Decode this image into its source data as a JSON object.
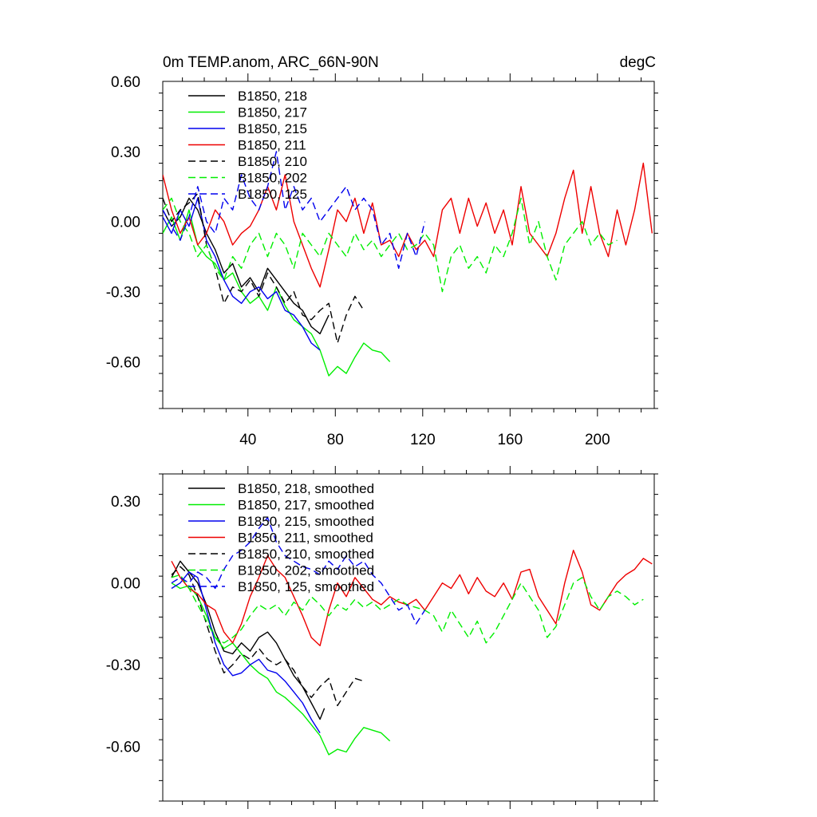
{
  "chart_data": [
    {
      "type": "line",
      "title": "0m TEMP.anom, ARC_66N-90N",
      "units": "degC",
      "xlim": [
        1,
        226
      ],
      "ylim": [
        -0.8,
        0.6
      ],
      "xticks": [
        40,
        80,
        120,
        160,
        200
      ],
      "xtick_labels": [
        "40",
        "80",
        "120",
        "160",
        "200"
      ],
      "yticks": [
        0.6,
        0.3,
        0.0,
        -0.3,
        -0.6
      ],
      "ytick_labels": [
        "0.60",
        "0.30",
        "0.00",
        "-0.30",
        "-0.60"
      ],
      "legend_position": "top-left",
      "series": [
        {
          "name": "B1850, 218",
          "color": "#000000",
          "dash": "solid",
          "x": [
            1,
            5,
            9,
            13,
            17,
            21,
            25,
            29,
            33,
            37,
            41,
            45,
            49,
            53,
            57,
            61,
            65,
            69,
            73,
            77
          ],
          "values": [
            0.05,
            -0.02,
            0.02,
            0.1,
            0.05,
            -0.05,
            -0.12,
            -0.22,
            -0.18,
            -0.28,
            -0.24,
            -0.3,
            -0.2,
            -0.25,
            -0.3,
            -0.35,
            -0.38,
            -0.45,
            -0.48,
            -0.4
          ]
        },
        {
          "name": "B1850, 217",
          "color": "#00ee00",
          "dash": "solid",
          "x": [
            1,
            5,
            9,
            13,
            17,
            21,
            25,
            29,
            33,
            37,
            41,
            45,
            49,
            53,
            57,
            61,
            65,
            69,
            73,
            77,
            81,
            85,
            89,
            93,
            97,
            101,
            105
          ],
          "values": [
            -0.05,
            0.02,
            -0.08,
            0.05,
            -0.1,
            -0.15,
            -0.18,
            -0.25,
            -0.22,
            -0.3,
            -0.35,
            -0.32,
            -0.38,
            -0.28,
            -0.36,
            -0.42,
            -0.45,
            -0.48,
            -0.55,
            -0.66,
            -0.62,
            -0.65,
            -0.58,
            -0.52,
            -0.55,
            -0.56,
            -0.6
          ]
        },
        {
          "name": "B1850, 215",
          "color": "#0000ee",
          "dash": "solid",
          "x": [
            1,
            5,
            9,
            13,
            17,
            21,
            25,
            29,
            33,
            37,
            41,
            45,
            49,
            53,
            57,
            61,
            65,
            69,
            73
          ],
          "values": [
            0.02,
            -0.05,
            0.05,
            -0.02,
            0.1,
            -0.08,
            -0.15,
            -0.25,
            -0.32,
            -0.35,
            -0.3,
            -0.28,
            -0.33,
            -0.3,
            -0.38,
            -0.4,
            -0.45,
            -0.52,
            -0.55
          ]
        },
        {
          "name": "B1850, 211",
          "color": "#ee0000",
          "dash": "solid",
          "x": [
            1,
            5,
            9,
            13,
            17,
            21,
            25,
            29,
            33,
            37,
            41,
            45,
            49,
            53,
            57,
            61,
            65,
            69,
            73,
            77,
            81,
            85,
            89,
            93,
            97,
            101,
            105,
            109,
            113,
            117,
            121,
            125,
            129,
            133,
            137,
            141,
            145,
            149,
            153,
            157,
            161,
            165,
            169,
            173,
            177,
            181,
            185,
            189,
            193,
            197,
            201,
            205,
            209,
            213,
            217,
            221,
            225
          ],
          "values": [
            0.2,
            0.05,
            -0.05,
            0.02,
            -0.1,
            -0.05,
            0.05,
            0.0,
            -0.1,
            -0.05,
            -0.02,
            0.05,
            0.15,
            0.05,
            0.2,
            0.0,
            -0.1,
            -0.2,
            -0.28,
            -0.12,
            0.05,
            0.0,
            0.1,
            -0.05,
            0.08,
            -0.1,
            -0.08,
            -0.15,
            -0.05,
            -0.12,
            -0.08,
            -0.15,
            0.05,
            0.1,
            -0.05,
            0.1,
            -0.02,
            0.08,
            -0.05,
            0.05,
            -0.1,
            0.15,
            -0.05,
            -0.1,
            -0.15,
            -0.05,
            0.1,
            0.22,
            -0.05,
            0.15,
            -0.05,
            -0.15,
            0.05,
            -0.1,
            0.05,
            0.25,
            -0.05
          ]
        },
        {
          "name": "B1850, 210",
          "color": "#000000",
          "dash": "dashed",
          "x": [
            1,
            5,
            9,
            13,
            17,
            21,
            25,
            29,
            33,
            37,
            41,
            45,
            49,
            53,
            57,
            61,
            65,
            69,
            73,
            77,
            81,
            85,
            89,
            93
          ],
          "values": [
            0.1,
            0.0,
            0.05,
            0.08,
            0.12,
            -0.1,
            -0.2,
            -0.35,
            -0.28,
            -0.3,
            -0.25,
            -0.32,
            -0.22,
            -0.28,
            -0.35,
            -0.3,
            -0.4,
            -0.42,
            -0.38,
            -0.35,
            -0.52,
            -0.4,
            -0.32,
            -0.38
          ]
        },
        {
          "name": "B1850, 202",
          "color": "#00ee00",
          "dash": "dashed",
          "x": [
            1,
            5,
            9,
            13,
            17,
            21,
            25,
            29,
            33,
            37,
            41,
            45,
            49,
            53,
            57,
            61,
            65,
            69,
            73,
            77,
            81,
            85,
            89,
            93,
            97,
            101,
            105,
            109,
            113,
            117,
            121,
            125,
            129,
            133,
            137,
            141,
            145,
            149,
            153,
            157,
            161,
            165,
            169,
            173,
            177,
            181,
            185,
            189,
            193,
            197,
            201,
            205,
            209
          ],
          "values": [
            0.05,
            0.1,
            0.0,
            -0.05,
            -0.15,
            -0.1,
            -0.2,
            -0.25,
            -0.15,
            -0.2,
            -0.1,
            -0.05,
            -0.15,
            -0.05,
            -0.1,
            -0.2,
            -0.05,
            -0.1,
            -0.15,
            -0.05,
            -0.1,
            -0.15,
            -0.05,
            -0.12,
            -0.08,
            -0.15,
            -0.1,
            -0.05,
            -0.12,
            -0.1,
            -0.05,
            -0.1,
            -0.3,
            -0.15,
            -0.1,
            -0.2,
            -0.15,
            -0.22,
            -0.1,
            -0.15,
            -0.05,
            0.1,
            -0.1,
            0.0,
            -0.15,
            -0.25,
            -0.1,
            -0.05,
            0.0,
            -0.1,
            -0.05,
            -0.1,
            -0.08
          ]
        },
        {
          "name": "B1850, 125",
          "color": "#0000ee",
          "dash": "dashed",
          "x": [
            1,
            5,
            9,
            13,
            17,
            21,
            25,
            29,
            33,
            37,
            41,
            45,
            49,
            53,
            57,
            61,
            65,
            69,
            73,
            77,
            81,
            85,
            89,
            93,
            97,
            101,
            105,
            109,
            113,
            117,
            121
          ],
          "values": [
            0.05,
            -0.02,
            -0.08,
            0.02,
            0.15,
            0.0,
            -0.05,
            0.1,
            0.05,
            0.2,
            0.1,
            0.05,
            0.15,
            0.3,
            0.05,
            0.15,
            0.05,
            0.1,
            0.0,
            0.05,
            0.1,
            0.15,
            0.05,
            0.1,
            0.05,
            -0.1,
            -0.05,
            -0.2,
            -0.05,
            -0.15,
            0.0
          ]
        }
      ]
    },
    {
      "type": "line",
      "title": "",
      "xlim": [
        1,
        226
      ],
      "ylim": [
        -0.8,
        0.4
      ],
      "xticks": [
        40,
        80,
        120,
        160,
        200
      ],
      "yticks": [
        0.3,
        0.0,
        -0.3,
        -0.6
      ],
      "ytick_labels": [
        "0.30",
        "0.00",
        "-0.30",
        "-0.60"
      ],
      "legend_position": "top-left",
      "series": [
        {
          "name": "B1850, 218, smoothed",
          "color": "#000000",
          "dash": "solid",
          "x": [
            5,
            9,
            13,
            17,
            21,
            25,
            29,
            33,
            37,
            41,
            45,
            49,
            53,
            57,
            61,
            65,
            69,
            73,
            75
          ],
          "values": [
            0.02,
            0.08,
            0.04,
            0.0,
            -0.08,
            -0.18,
            -0.25,
            -0.26,
            -0.22,
            -0.25,
            -0.2,
            -0.18,
            -0.22,
            -0.28,
            -0.34,
            -0.38,
            -0.44,
            -0.5,
            -0.46
          ]
        },
        {
          "name": "B1850, 217, smoothed",
          "color": "#00ee00",
          "dash": "solid",
          "x": [
            5,
            9,
            13,
            17,
            21,
            25,
            29,
            33,
            37,
            41,
            45,
            49,
            53,
            57,
            61,
            65,
            69,
            73,
            77,
            81,
            85,
            89,
            93,
            97,
            101,
            105
          ],
          "values": [
            0.0,
            -0.02,
            -0.01,
            -0.05,
            -0.12,
            -0.2,
            -0.24,
            -0.22,
            -0.26,
            -0.3,
            -0.33,
            -0.35,
            -0.4,
            -0.42,
            -0.45,
            -0.48,
            -0.52,
            -0.56,
            -0.63,
            -0.61,
            -0.62,
            -0.57,
            -0.53,
            -0.54,
            -0.55,
            -0.58
          ]
        },
        {
          "name": "B1850, 215, smoothed",
          "color": "#0000ee",
          "dash": "solid",
          "x": [
            5,
            9,
            13,
            17,
            21,
            25,
            29,
            33,
            37,
            41,
            45,
            49,
            53,
            57,
            61,
            65,
            69,
            73
          ],
          "values": [
            -0.02,
            0.0,
            0.04,
            0.02,
            -0.1,
            -0.22,
            -0.3,
            -0.34,
            -0.33,
            -0.3,
            -0.28,
            -0.32,
            -0.33,
            -0.36,
            -0.4,
            -0.44,
            -0.5,
            -0.55
          ]
        },
        {
          "name": "B1850, 211, smoothed",
          "color": "#ee0000",
          "dash": "solid",
          "x": [
            5,
            9,
            13,
            17,
            21,
            25,
            29,
            33,
            37,
            41,
            45,
            49,
            53,
            57,
            61,
            65,
            69,
            73,
            77,
            81,
            85,
            89,
            93,
            97,
            101,
            105,
            109,
            113,
            117,
            121,
            125,
            129,
            133,
            137,
            141,
            145,
            149,
            153,
            157,
            161,
            165,
            169,
            173,
            177,
            181,
            185,
            189,
            193,
            197,
            201,
            205,
            209,
            213,
            217,
            221,
            225
          ],
          "values": [
            0.08,
            0.02,
            -0.02,
            -0.04,
            -0.08,
            -0.1,
            -0.18,
            -0.22,
            -0.15,
            -0.05,
            0.02,
            0.1,
            0.05,
            0.02,
            -0.05,
            -0.12,
            -0.2,
            -0.23,
            -0.1,
            0.0,
            -0.05,
            0.02,
            -0.02,
            -0.06,
            -0.08,
            -0.05,
            -0.07,
            -0.08,
            -0.06,
            -0.1,
            -0.05,
            0.0,
            -0.02,
            0.03,
            -0.04,
            0.02,
            -0.03,
            -0.05,
            0.0,
            -0.06,
            0.04,
            0.05,
            -0.05,
            -0.1,
            -0.15,
            0.0,
            0.12,
            0.04,
            -0.08,
            -0.1,
            -0.05,
            0.0,
            0.03,
            0.05,
            0.09,
            0.07
          ]
        },
        {
          "name": "B1850, 210, smoothed",
          "color": "#000000",
          "dash": "dashed",
          "x": [
            5,
            9,
            13,
            17,
            21,
            25,
            29,
            33,
            37,
            41,
            45,
            49,
            53,
            57,
            61,
            65,
            69,
            73,
            77,
            81,
            85,
            89,
            93
          ],
          "values": [
            0.03,
            0.06,
            0.03,
            -0.05,
            -0.15,
            -0.25,
            -0.33,
            -0.3,
            -0.26,
            -0.28,
            -0.24,
            -0.28,
            -0.3,
            -0.28,
            -0.32,
            -0.38,
            -0.42,
            -0.38,
            -0.35,
            -0.45,
            -0.4,
            -0.35,
            -0.36
          ]
        },
        {
          "name": "B1850, 202, smoothed",
          "color": "#00ee00",
          "dash": "dashed",
          "x": [
            5,
            9,
            13,
            17,
            21,
            25,
            29,
            33,
            37,
            41,
            45,
            49,
            53,
            57,
            61,
            65,
            69,
            73,
            77,
            81,
            85,
            89,
            93,
            97,
            101,
            105,
            109,
            113,
            117,
            121,
            125,
            129,
            133,
            137,
            141,
            145,
            149,
            153,
            157,
            161,
            165,
            169,
            173,
            177,
            181,
            185,
            189,
            193,
            197,
            201,
            205,
            209,
            213,
            217,
            221
          ],
          "values": [
            0.02,
            0.03,
            -0.02,
            -0.08,
            -0.14,
            -0.2,
            -0.22,
            -0.2,
            -0.17,
            -0.12,
            -0.08,
            -0.1,
            -0.08,
            -0.12,
            -0.07,
            -0.1,
            -0.05,
            -0.08,
            -0.12,
            -0.08,
            -0.1,
            -0.06,
            -0.09,
            -0.07,
            -0.1,
            -0.08,
            -0.06,
            -0.08,
            -0.09,
            -0.1,
            -0.12,
            -0.18,
            -0.1,
            -0.15,
            -0.2,
            -0.14,
            -0.22,
            -0.18,
            -0.12,
            -0.06,
            0.0,
            -0.05,
            -0.1,
            -0.2,
            -0.16,
            -0.08,
            0.0,
            0.02,
            -0.05,
            -0.1,
            -0.05,
            -0.03,
            -0.05,
            -0.08,
            -0.06
          ]
        },
        {
          "name": "B1850, 125, smoothed",
          "color": "#0000ee",
          "dash": "dashed",
          "x": [
            5,
            9,
            13,
            17,
            21,
            25,
            29,
            33,
            37,
            41,
            45,
            49,
            53,
            57,
            61,
            65,
            69,
            73,
            77,
            81,
            85,
            89,
            93,
            97,
            101,
            105,
            109,
            113,
            117,
            121
          ],
          "values": [
            0.0,
            0.02,
            0.0,
            0.04,
            0.02,
            -0.02,
            0.05,
            0.1,
            0.12,
            0.15,
            0.2,
            0.24,
            0.15,
            0.1,
            0.08,
            0.06,
            0.05,
            0.03,
            0.08,
            0.05,
            0.1,
            0.06,
            0.08,
            0.03,
            0.0,
            -0.05,
            -0.1,
            -0.08,
            -0.15,
            -0.1
          ]
        }
      ]
    }
  ]
}
